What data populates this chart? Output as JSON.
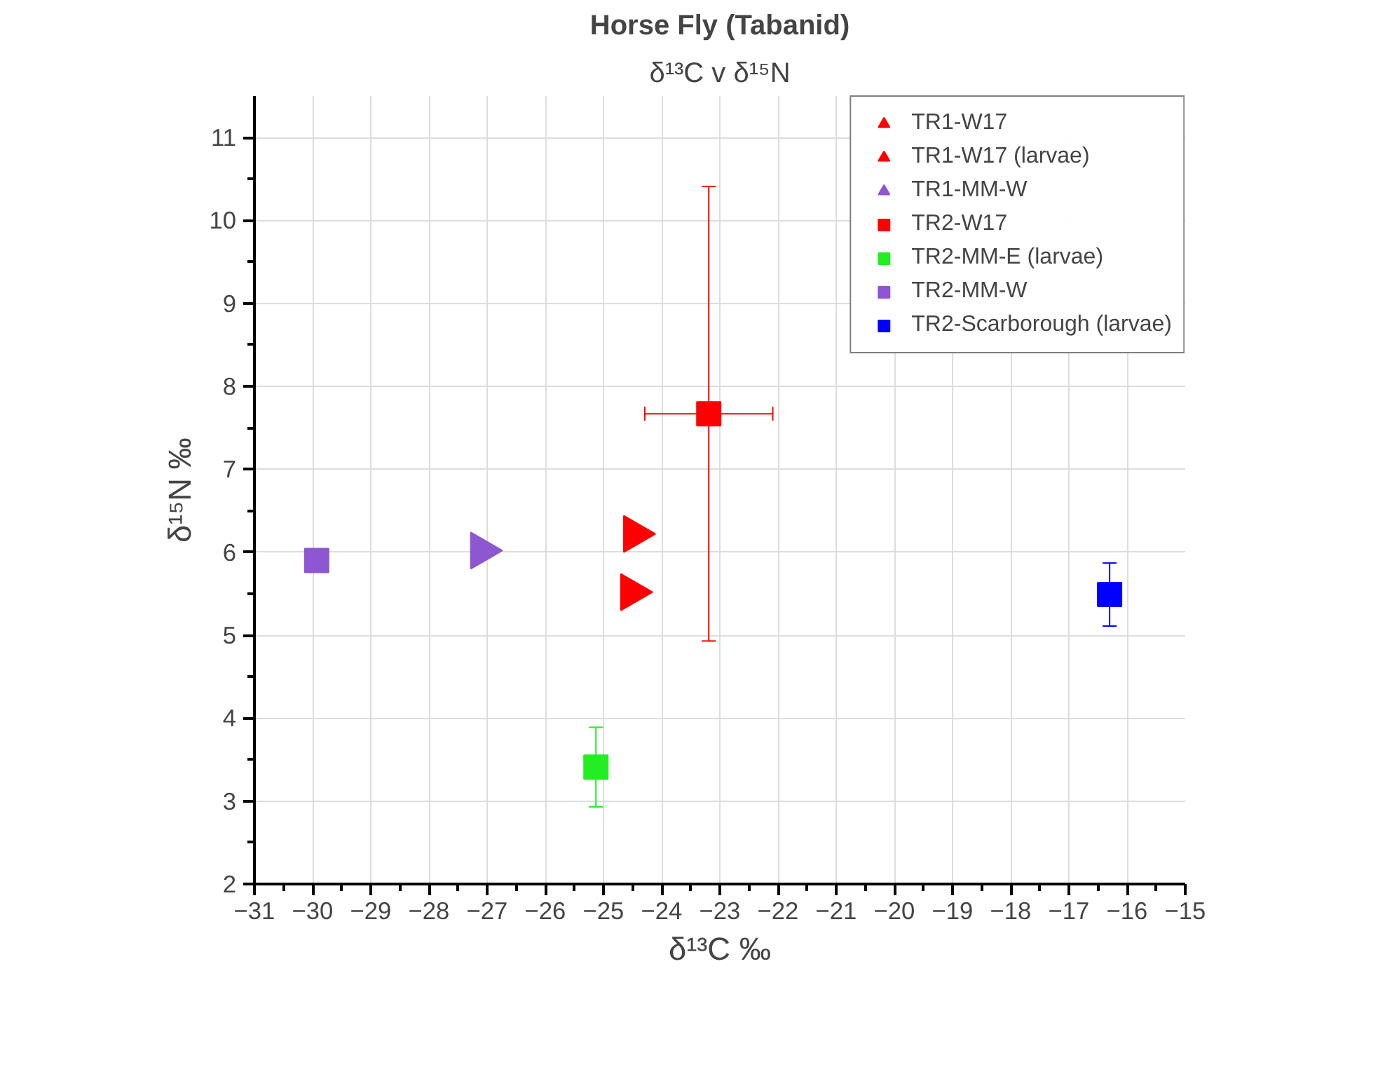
{
  "chart_data": {
    "type": "scatter",
    "title": "Horse Fly (Tabanid)",
    "subtitle": "δ¹³C v δ¹⁵N",
    "xlabel": "δ¹³C ‰",
    "ylabel": "δ¹⁵N ‰",
    "xlim": [
      -31,
      -15
    ],
    "xticks": [
      -31,
      -30,
      -29,
      -28,
      -27,
      -26,
      -25,
      -24,
      -23,
      -22,
      -21,
      -20,
      -19,
      -18,
      -17,
      -16,
      -15
    ],
    "ylim": [
      2,
      11.5
    ],
    "yticks": [
      2,
      3,
      4,
      5,
      6,
      7,
      8,
      9,
      10,
      11
    ],
    "grid": true,
    "legend": "top right",
    "series": [
      {
        "name": "TR1-W17",
        "color": "#ff0000",
        "marker": "triangle",
        "x": [
          -24.52
        ],
        "values": [
          5.52
        ]
      },
      {
        "name": "TR1-W17 (larvae)",
        "color": "#ff0000",
        "marker": "triangle",
        "x": [
          -24.47
        ],
        "values": [
          6.22
        ]
      },
      {
        "name": "TR1-MM-W",
        "color": "#8e56d0",
        "marker": "triangle",
        "x": [
          -27.1
        ],
        "values": [
          6.02
        ]
      },
      {
        "name": "TR2-W17",
        "color": "#ff0000",
        "marker": "square",
        "x": [
          -23.19
        ],
        "values": [
          7.67
        ],
        "errors": [
          2.74
        ],
        "xerrors": [
          1.1
        ]
      },
      {
        "name": "TR2-MM-E (larvae)",
        "color": "#22ee22",
        "marker": "square",
        "x": [
          -25.13
        ],
        "values": [
          3.41
        ],
        "errors": [
          0.48
        ]
      },
      {
        "name": "TR2-MM-W",
        "color": "#8e56d0",
        "marker": "square",
        "x": [
          -29.93
        ],
        "values": [
          5.9
        ]
      },
      {
        "name": "TR2-Scarborough (larvae)",
        "color": "#0000ff",
        "marker": "square",
        "x": [
          -16.3
        ],
        "values": [
          5.49
        ],
        "errors": [
          0.38
        ]
      }
    ]
  }
}
